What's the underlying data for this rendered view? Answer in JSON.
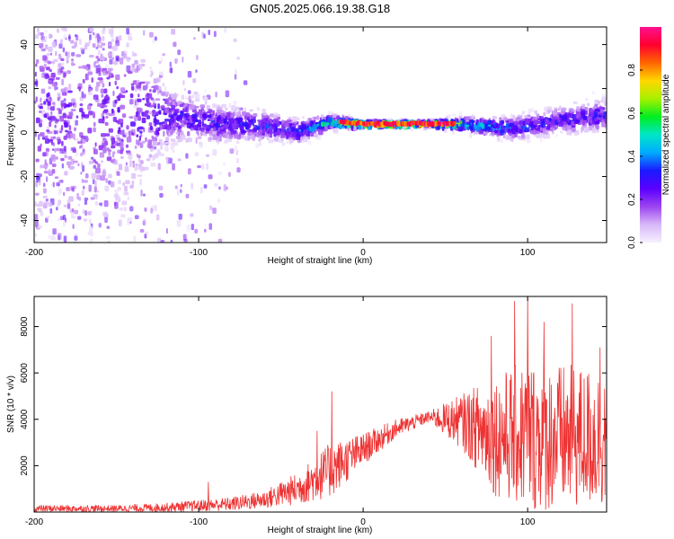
{
  "figure_title": "GN05.2025.066.19.38.G18",
  "colors": {
    "snr_line": "#ee3333",
    "axis": "#000000",
    "background": "#ffffff"
  },
  "chart_data": [
    {
      "type": "heatmap",
      "name": "spectrogram",
      "title": "",
      "xlabel": "Height of straight line (km)",
      "ylabel": "Frequency (Hz)",
      "xlim": [
        -200,
        148
      ],
      "ylim": [
        -50,
        48
      ],
      "xticks": [
        -200,
        -100,
        0,
        100
      ],
      "xtick_labels": [
        "-200",
        "-100",
        "0",
        "100"
      ],
      "yticks": [
        -40,
        -20,
        0,
        20,
        40
      ],
      "ytick_labels": [
        "-40",
        "-20",
        "0",
        "20",
        "40"
      ],
      "ridge": [
        {
          "x": -200,
          "freq": 10,
          "spread": 50,
          "amp": 0.22
        },
        {
          "x": -150,
          "freq": 8,
          "spread": 45,
          "amp": 0.22
        },
        {
          "x": -120,
          "freq": 8,
          "spread": 12,
          "amp": 0.28
        },
        {
          "x": -90,
          "freq": 4,
          "spread": 8,
          "amp": 0.3
        },
        {
          "x": -60,
          "freq": 3,
          "spread": 6,
          "amp": 0.34
        },
        {
          "x": -40,
          "freq": 1,
          "spread": 5,
          "amp": 0.35
        },
        {
          "x": -20,
          "freq": 5,
          "spread": 3,
          "amp": 0.55
        },
        {
          "x": 0,
          "freq": 4,
          "spread": 1.5,
          "amp": 0.95
        },
        {
          "x": 40,
          "freq": 4,
          "spread": 1.5,
          "amp": 0.95
        },
        {
          "x": 60,
          "freq": 4,
          "spread": 3,
          "amp": 0.55
        },
        {
          "x": 90,
          "freq": 2,
          "spread": 5,
          "amp": 0.35
        },
        {
          "x": 120,
          "freq": 6,
          "spread": 6,
          "amp": 0.3
        },
        {
          "x": 148,
          "freq": 8,
          "spread": 7,
          "amp": 0.3
        }
      ],
      "colorbar": {
        "label": "Normalized spectral amplitude",
        "range": [
          0,
          1
        ],
        "ticks": [
          0.0,
          0.2,
          0.4,
          0.6,
          0.8
        ],
        "tick_labels": [
          "0.0",
          "0.2",
          "0.4",
          "0.6",
          "0.8"
        ],
        "stops": [
          "#f6f0ff",
          "#d8b8f8",
          "#9d44f0",
          "#5a00ff",
          "#1a1aff",
          "#00aaff",
          "#00e6c8",
          "#00ee20",
          "#a8f000",
          "#ffd800",
          "#ff6600",
          "#ff0030",
          "#ff1090"
        ]
      }
    },
    {
      "type": "line",
      "name": "snr",
      "title": "",
      "xlabel": "Height of straight line (km)",
      "ylabel": "SNR (10 * v/v)",
      "xlim": [
        -200,
        148
      ],
      "ylim": [
        0,
        9300
      ],
      "xticks": [
        -200,
        -100,
        0,
        100
      ],
      "xtick_labels": [
        "-200",
        "-100",
        "0",
        "100"
      ],
      "yticks": [
        2000,
        4000,
        6000,
        8000
      ],
      "ytick_labels": [
        "2000",
        "4000",
        "6000",
        "8000"
      ],
      "envelope": [
        {
          "x": -200,
          "mean": 150,
          "noise": 150
        },
        {
          "x": -150,
          "mean": 150,
          "noise": 150
        },
        {
          "x": -120,
          "mean": 200,
          "noise": 200
        },
        {
          "x": -80,
          "mean": 350,
          "noise": 300
        },
        {
          "x": -60,
          "mean": 550,
          "noise": 400
        },
        {
          "x": -40,
          "mean": 1000,
          "noise": 700
        },
        {
          "x": -20,
          "mean": 1800,
          "noise": 1200
        },
        {
          "x": 0,
          "mean": 2700,
          "noise": 700
        },
        {
          "x": 20,
          "mean": 3600,
          "noise": 400
        },
        {
          "x": 40,
          "mean": 4100,
          "noise": 250
        },
        {
          "x": 60,
          "mean": 3900,
          "noise": 1200
        },
        {
          "x": 80,
          "mean": 3300,
          "noise": 2600
        },
        {
          "x": 100,
          "mean": 3300,
          "noise": 3300
        },
        {
          "x": 120,
          "mean": 3200,
          "noise": 3200
        },
        {
          "x": 148,
          "mean": 3200,
          "noise": 3000
        }
      ],
      "spikes": [
        {
          "x": -94,
          "y": 1300
        },
        {
          "x": -28,
          "y": 3500
        },
        {
          "x": -19,
          "y": 5200
        },
        {
          "x": 78,
          "y": 7600
        },
        {
          "x": 92,
          "y": 9100
        },
        {
          "x": 100,
          "y": 9300
        },
        {
          "x": 110,
          "y": 8200
        },
        {
          "x": 127,
          "y": 9000
        },
        {
          "x": 144,
          "y": 7100
        }
      ]
    }
  ]
}
